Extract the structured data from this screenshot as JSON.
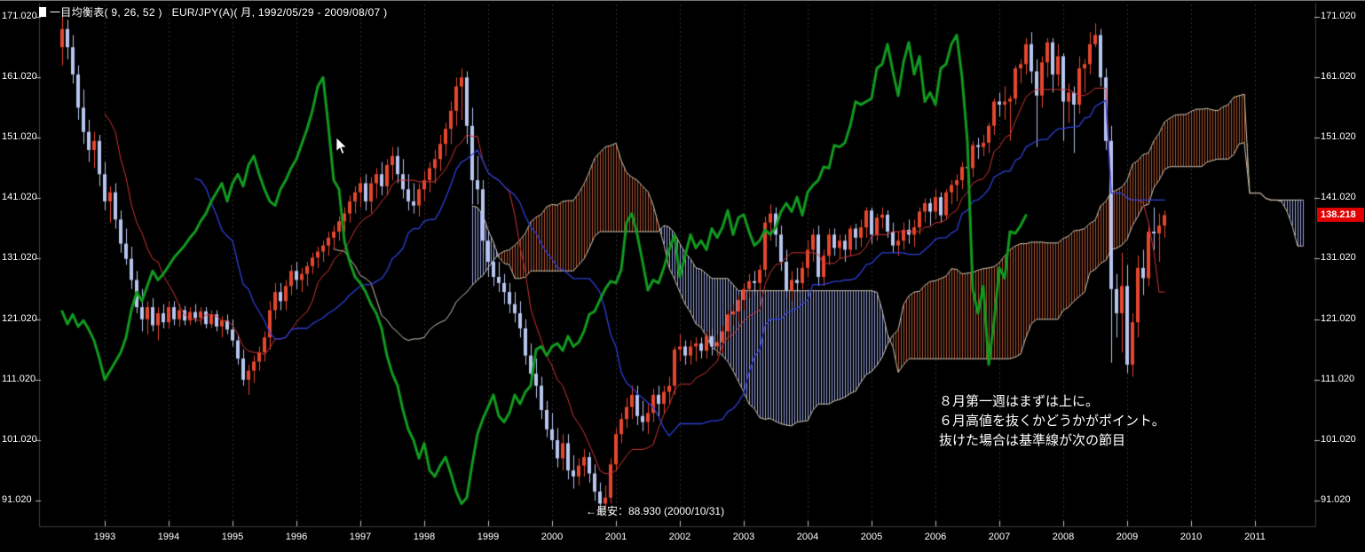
{
  "header": {
    "title": "一目均衡表( 9, 26, 52 )   EUR/JPY(A)( 月, 1992/05/29 - 2009/08/07 )"
  },
  "price_badge": {
    "value": "138.218",
    "bg_color": "#e10000"
  },
  "axis": {
    "y_labels": [
      "171.020",
      "161.020",
      "151.020",
      "141.020",
      "131.020",
      "121.020",
      "111.020",
      "101.020",
      "91.020"
    ],
    "x_labels": [
      "1993",
      "1994",
      "1995",
      "1996",
      "1997",
      "1998",
      "1999",
      "2000",
      "2001",
      "2002",
      "2003",
      "2004",
      "2005",
      "2006",
      "2007",
      "2008",
      "2009",
      "2010",
      "2011"
    ]
  },
  "annotations": {
    "note_lines": [
      "８月第一週はまずは上に。",
      "６月高値を抜くかどうかがポイント。",
      "抜けた場合は基準線が次の節目"
    ],
    "min_label": "←最安：88.930 (2000/10/31)"
  },
  "chart_data": {
    "type": "candlestick",
    "overlay": "ichimoku",
    "title": "一目均衡表( 9, 26, 52 )",
    "symbol": "EUR/JPY(A)",
    "interval": "月",
    "date_range": "1992/05/29 - 2009/08/07",
    "start_month": "1992-05",
    "ichimoku_params": {
      "tenkan": 9,
      "kijun": 26,
      "senkou_b": 52,
      "shift": 26
    },
    "y_axis": {
      "min": 91.02,
      "max": 171.02,
      "step": 10
    },
    "last_price": 138.218,
    "low_annotation": {
      "value": 88.93,
      "date": "2000/10/31"
    },
    "ohlc": [
      [
        166,
        171,
        163,
        169
      ],
      [
        169,
        170.5,
        164,
        166
      ],
      [
        166,
        168,
        160,
        161.5
      ],
      [
        161.5,
        163,
        154,
        156
      ],
      [
        156,
        159,
        150,
        152
      ],
      [
        152,
        154,
        147,
        149
      ],
      [
        149,
        152,
        146,
        150.5
      ],
      [
        150.5,
        151.5,
        143,
        145
      ],
      [
        145,
        147,
        139,
        140.5
      ],
      [
        140.5,
        143,
        137,
        142
      ],
      [
        142,
        143.5,
        136,
        137.5
      ],
      [
        137.5,
        139,
        132,
        133.5
      ],
      [
        133.5,
        136,
        130,
        131
      ],
      [
        131,
        133,
        126,
        127.5
      ],
      [
        127.5,
        129,
        122,
        123
      ],
      [
        123,
        126,
        119,
        121
      ],
      [
        121,
        124,
        118.5,
        123
      ],
      [
        123,
        124.5,
        119,
        120
      ],
      [
        120,
        123,
        117.5,
        122
      ],
      [
        122,
        123.5,
        119.5,
        120.5
      ],
      [
        120.5,
        124,
        119.5,
        123
      ],
      [
        123,
        124,
        120,
        121
      ],
      [
        121,
        123.5,
        119.8,
        122.5
      ],
      [
        122.5,
        123.2,
        120,
        120.8
      ],
      [
        120.8,
        123,
        120,
        122.2
      ],
      [
        122.2,
        123.5,
        120.5,
        121.2
      ],
      [
        121.2,
        123,
        120,
        122.3
      ],
      [
        122.3,
        123,
        119.5,
        120.2
      ],
      [
        120.2,
        122.5,
        119.5,
        121.8
      ],
      [
        121.8,
        122.5,
        119,
        119.8
      ],
      [
        119.8,
        121.5,
        118,
        120.8
      ],
      [
        120.8,
        121.8,
        118.5,
        119.3
      ],
      [
        119.3,
        121,
        116.5,
        117.5
      ],
      [
        117.5,
        118.5,
        113.5,
        114.5
      ],
      [
        114.5,
        116,
        110,
        111
      ],
      [
        111,
        113.5,
        108.5,
        112.5
      ],
      [
        112.5,
        115,
        110.5,
        114
      ],
      [
        114,
        116.5,
        112.5,
        115.5
      ],
      [
        115.5,
        119,
        114,
        118
      ],
      [
        118,
        124,
        116,
        122.5
      ],
      [
        122.5,
        127,
        121,
        125.5
      ],
      [
        125.5,
        127,
        122.5,
        124
      ],
      [
        124,
        127.5,
        122.5,
        126.5
      ],
      [
        126.5,
        130,
        125,
        129
      ],
      [
        129,
        130.5,
        126,
        127.5
      ],
      [
        127.5,
        129.5,
        125.5,
        128.5
      ],
      [
        128.5,
        130.5,
        126.5,
        129.8
      ],
      [
        129.8,
        132,
        128.5,
        131.2
      ],
      [
        131.2,
        133,
        129.5,
        132.2
      ],
      [
        132.2,
        134,
        130.5,
        133.2
      ],
      [
        133.2,
        135.5,
        131.5,
        134.5
      ],
      [
        134.5,
        136.5,
        132.5,
        135.5
      ],
      [
        135.5,
        138,
        134,
        137.2
      ],
      [
        137.2,
        139.5,
        135.5,
        138.5
      ],
      [
        138.5,
        141.5,
        137,
        140.5
      ],
      [
        140.5,
        143,
        138.5,
        142
      ],
      [
        142,
        144.5,
        139.5,
        143.5
      ],
      [
        143.5,
        145,
        139,
        140.5
      ],
      [
        140.5,
        144.5,
        138.5,
        143.5
      ],
      [
        143.5,
        146,
        141,
        145
      ],
      [
        145,
        147,
        141.5,
        143
      ],
      [
        143,
        147.5,
        141.5,
        146.5
      ],
      [
        146.5,
        149.5,
        144,
        148
      ],
      [
        148,
        149.5,
        143.5,
        145
      ],
      [
        145,
        147.5,
        141,
        142.5
      ],
      [
        142.5,
        145,
        139,
        140.5
      ],
      [
        140.5,
        143.5,
        138.5,
        139.8
      ],
      [
        139.8,
        143.5,
        138,
        142.5
      ],
      [
        142.5,
        145.5,
        140.5,
        144
      ],
      [
        144,
        147,
        142,
        146
      ],
      [
        146,
        149,
        143.5,
        147.5
      ],
      [
        147.5,
        151.5,
        145.5,
        150
      ],
      [
        150,
        153.5,
        148,
        152.5
      ],
      [
        152.5,
        157,
        150,
        155.5
      ],
      [
        155.5,
        161,
        153,
        159.5
      ],
      [
        159.5,
        162.5,
        154,
        161
      ],
      [
        161,
        162,
        150,
        153
      ],
      [
        153,
        156,
        140,
        144
      ],
      [
        144,
        148,
        140,
        142.5
      ],
      [
        142.5,
        144,
        132,
        134
      ],
      [
        134,
        135.5,
        128,
        130.5
      ],
      [
        130.5,
        132,
        126.5,
        128
      ],
      [
        128,
        130.5,
        125.5,
        127
      ],
      [
        127,
        128.5,
        123.5,
        125.5
      ],
      [
        125.5,
        127,
        122,
        123.5
      ],
      [
        123.5,
        125.5,
        120.5,
        122
      ],
      [
        122,
        124,
        118,
        119.5
      ],
      [
        119.5,
        121,
        113.5,
        115
      ],
      [
        115,
        117,
        110,
        112
      ],
      [
        112,
        114.5,
        108,
        110
      ],
      [
        110,
        111.5,
        104.5,
        106
      ],
      [
        106,
        107.5,
        101.5,
        102.8
      ],
      [
        102.8,
        105.5,
        99.5,
        101
      ],
      [
        101,
        103,
        96.5,
        98
      ],
      [
        98,
        102,
        96,
        100.5
      ],
      [
        100.5,
        102,
        94.5,
        96
      ],
      [
        96,
        98.5,
        93,
        95
      ],
      [
        95,
        98,
        93.5,
        96.8
      ],
      [
        96.8,
        99.5,
        95,
        98.2
      ],
      [
        98.2,
        99,
        94,
        95.5
      ],
      [
        95.5,
        97,
        91,
        92.5
      ],
      [
        92.5,
        94,
        88.93,
        90.5
      ],
      [
        90.5,
        93.5,
        89.5,
        91.5
      ],
      [
        91.5,
        98,
        90.5,
        97
      ],
      [
        97,
        103,
        96,
        102
      ],
      [
        102,
        105.5,
        100.5,
        104.5
      ],
      [
        104.5,
        108,
        103,
        106.5
      ],
      [
        106.5,
        110,
        104.5,
        108.5
      ],
      [
        108.5,
        110,
        103.5,
        105
      ],
      [
        105,
        107.5,
        102.5,
        104
      ],
      [
        104,
        107,
        102,
        105.5
      ],
      [
        105.5,
        109.5,
        104,
        108.5
      ],
      [
        108.5,
        110,
        105,
        107
      ],
      [
        107,
        110,
        105.5,
        109
      ],
      [
        109,
        111.5,
        107,
        110
      ],
      [
        110,
        116.5,
        108.5,
        116
      ],
      [
        116,
        118.5,
        114,
        116.5
      ],
      [
        116.5,
        117.5,
        113.5,
        115
      ],
      [
        115,
        117.5,
        113.5,
        116.5
      ],
      [
        116.5,
        118,
        114,
        117
      ],
      [
        117,
        118,
        114.5,
        115.8
      ],
      [
        115.8,
        119,
        114.5,
        118.2
      ],
      [
        118.2,
        119.5,
        115,
        116.5
      ],
      [
        116.5,
        118.5,
        115,
        117.2
      ],
      [
        117.2,
        120,
        115.5,
        119
      ],
      [
        119,
        122.5,
        117.5,
        121.8
      ],
      [
        121.8,
        123.5,
        120,
        122.3
      ],
      [
        122.3,
        125,
        120.5,
        124.2
      ],
      [
        124.2,
        127,
        122.5,
        126
      ],
      [
        126,
        128.5,
        124.5,
        127.3
      ],
      [
        127.3,
        129,
        125,
        127
      ],
      [
        127,
        130,
        125.5,
        129.2
      ],
      [
        129.2,
        138,
        128,
        137
      ],
      [
        137,
        140,
        134,
        138.5
      ],
      [
        138.5,
        139.5,
        133,
        135
      ],
      [
        135,
        136.5,
        129,
        130.5
      ],
      [
        130.5,
        132.5,
        124.5,
        125.8
      ],
      [
        125.8,
        129,
        124,
        127.5
      ],
      [
        127.5,
        129.5,
        125.5,
        127
      ],
      [
        127,
        130.5,
        126,
        129.5
      ],
      [
        129.5,
        134,
        128,
        132.5
      ],
      [
        132.5,
        136,
        130.5,
        135
      ],
      [
        135,
        136.5,
        126.5,
        128
      ],
      [
        128,
        132.5,
        126.5,
        131.5
      ],
      [
        131.5,
        136,
        130,
        135
      ],
      [
        135,
        136,
        131.5,
        132.8
      ],
      [
        132.8,
        135,
        131,
        134
      ],
      [
        134,
        135,
        130.5,
        132.5
      ],
      [
        132.5,
        136.5,
        131.5,
        136
      ],
      [
        136,
        136.8,
        132.5,
        134.5
      ],
      [
        134.5,
        137.5,
        133,
        136.2
      ],
      [
        136.2,
        139.5,
        134.5,
        139
      ],
      [
        139,
        139.5,
        133.5,
        135
      ],
      [
        135,
        138.5,
        134,
        137.8
      ],
      [
        137.8,
        139.5,
        136,
        138.3
      ],
      [
        138.3,
        139,
        134.5,
        135.5
      ],
      [
        135.5,
        137,
        132,
        133.2
      ],
      [
        133.2,
        135.5,
        131.5,
        134
      ],
      [
        134,
        137,
        132.5,
        135.8
      ],
      [
        135.8,
        137.5,
        133.5,
        135
      ],
      [
        135,
        137.5,
        133,
        136.2
      ],
      [
        136.2,
        139.5,
        135,
        138.8
      ],
      [
        138.8,
        141,
        137,
        140.2
      ],
      [
        140.2,
        141,
        136.5,
        138.8
      ],
      [
        138.8,
        142.5,
        137.5,
        141.2
      ],
      [
        141.2,
        142,
        137,
        138.2
      ],
      [
        138.2,
        142.5,
        137.5,
        142
      ],
      [
        142,
        144,
        140,
        143.2
      ],
      [
        143.2,
        145,
        140.5,
        144
      ],
      [
        144,
        147,
        142.5,
        146.2
      ],
      [
        146.2,
        147.5,
        143.5,
        146
      ],
      [
        146,
        150.5,
        144.5,
        149.8
      ],
      [
        149.8,
        151,
        147.5,
        149.5
      ],
      [
        149.5,
        151.5,
        148,
        150.2
      ],
      [
        150.2,
        153.5,
        148.5,
        153
      ],
      [
        153,
        157.5,
        151.5,
        157
      ],
      [
        157,
        158.5,
        154.5,
        156.5
      ],
      [
        156.5,
        159.5,
        154,
        157
      ],
      [
        157,
        158,
        150.5,
        157.5
      ],
      [
        157.5,
        163,
        156.5,
        162.5
      ],
      [
        162.5,
        164,
        160,
        163.2
      ],
      [
        163.2,
        167.5,
        161.5,
        166.5
      ],
      [
        166.5,
        168.5,
        160,
        162
      ],
      [
        162,
        164,
        149.5,
        158
      ],
      [
        158,
        164.5,
        156,
        163.5
      ],
      [
        163.5,
        167.5,
        161,
        166.8
      ],
      [
        166.8,
        167.5,
        158.5,
        161.5
      ],
      [
        161.5,
        166.5,
        159.5,
        164.5
      ],
      [
        164.5,
        165,
        150.5,
        157
      ],
      [
        157,
        160,
        153.5,
        158.5
      ],
      [
        158.5,
        159.5,
        148.5,
        156.5
      ],
      [
        156.5,
        164.5,
        155,
        162.5
      ],
      [
        162.5,
        164,
        158.5,
        163.2
      ],
      [
        163.2,
        168.5,
        161.5,
        166.5
      ],
      [
        166.5,
        169.95,
        166,
        168
      ],
      [
        168,
        169,
        159.5,
        161
      ],
      [
        161,
        162.5,
        149,
        150.5
      ],
      [
        150.5,
        153,
        113.8,
        126
      ],
      [
        126,
        128.5,
        118,
        122
      ],
      [
        122,
        132,
        115.5,
        126.5
      ],
      [
        126.5,
        130,
        112.1,
        113.5
      ],
      [
        113.5,
        122,
        111.5,
        120.5
      ],
      [
        120.5,
        131.5,
        118,
        129.5
      ],
      [
        129.5,
        132.5,
        125,
        127.8
      ],
      [
        127.8,
        136.5,
        126.5,
        135.5
      ],
      [
        135.5,
        139.5,
        132.5,
        135.2
      ],
      [
        135.2,
        138.5,
        130.5,
        136.5
      ],
      [
        136.5,
        139,
        134.5,
        138.218
      ]
    ],
    "colors": {
      "background": "#000000",
      "up": "#e5472e",
      "down": "#b7c6ef",
      "tenkan": "#cf3333",
      "kijun": "#2e3fd6",
      "chikou": "#129a20",
      "cloud_bull_hatch": "#ad5330",
      "cloud_bear_hatch": "#97a2e2",
      "cloud_border": "#cdc3b0",
      "grid": "#2f2f2f",
      "tick": "#bbbbbb",
      "frame": "#3c3c3c"
    }
  }
}
